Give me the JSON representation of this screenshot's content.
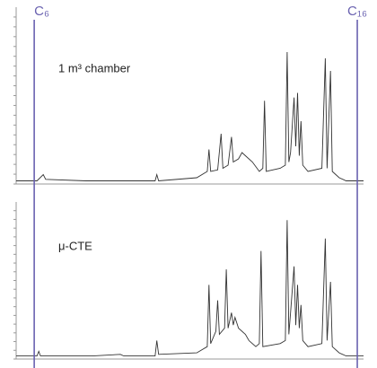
{
  "markers": [
    {
      "label": "C₆",
      "x": 5.2
    },
    {
      "label": "C₁₆",
      "x": 98.2
    }
  ],
  "chart_data": [
    {
      "type": "line",
      "annotation": "1 m³ chamber",
      "color": "#333333",
      "xlim": [
        0,
        100
      ],
      "ylim": [
        0,
        100
      ],
      "x": [
        0,
        6,
        7.8,
        8.5,
        20,
        40,
        40.5,
        41,
        52,
        55,
        55.5,
        56,
        58,
        59,
        59.5,
        61,
        62,
        62.5,
        64,
        65,
        66,
        68,
        70,
        71,
        71.5,
        72,
        76,
        77.5,
        78,
        78.5,
        79,
        80,
        80.5,
        81,
        81.5,
        82,
        82.5,
        84,
        88,
        89,
        89.5,
        90.5,
        91,
        93,
        95,
        100
      ],
      "values": [
        2,
        2,
        6,
        3,
        2,
        2,
        6,
        2,
        4,
        8,
        22,
        8,
        9,
        32,
        10,
        12,
        30,
        14,
        16,
        20,
        18,
        14,
        8,
        10,
        53,
        8,
        10,
        12,
        84,
        14,
        20,
        55,
        24,
        58,
        18,
        40,
        12,
        8,
        10,
        80,
        10,
        72,
        8,
        4,
        2,
        2
      ]
    },
    {
      "type": "line",
      "annotation": "μ-CTE",
      "color": "#333333",
      "xlim": [
        0,
        100
      ],
      "ylim": [
        0,
        100
      ],
      "x": [
        0,
        6,
        6.5,
        7,
        22,
        30,
        31,
        40,
        40.5,
        41,
        52,
        55,
        55.5,
        56,
        57.5,
        58,
        58.5,
        60,
        60.5,
        61,
        62,
        62.5,
        63,
        64,
        66,
        67,
        69,
        70,
        70.5,
        71,
        76,
        77.5,
        78,
        78.5,
        79,
        80,
        80.5,
        81,
        81.5,
        82,
        82.5,
        84,
        88,
        89,
        89.5,
        90.5,
        91,
        93,
        95,
        100
      ],
      "values": [
        2,
        2,
        5,
        2,
        2,
        3,
        2,
        2,
        12,
        3,
        4,
        8,
        48,
        10,
        18,
        38,
        16,
        20,
        58,
        20,
        30,
        22,
        27,
        20,
        16,
        12,
        8,
        10,
        70,
        8,
        10,
        12,
        90,
        16,
        30,
        60,
        22,
        48,
        20,
        35,
        12,
        8,
        10,
        78,
        12,
        50,
        8,
        4,
        2,
        2
      ]
    }
  ]
}
